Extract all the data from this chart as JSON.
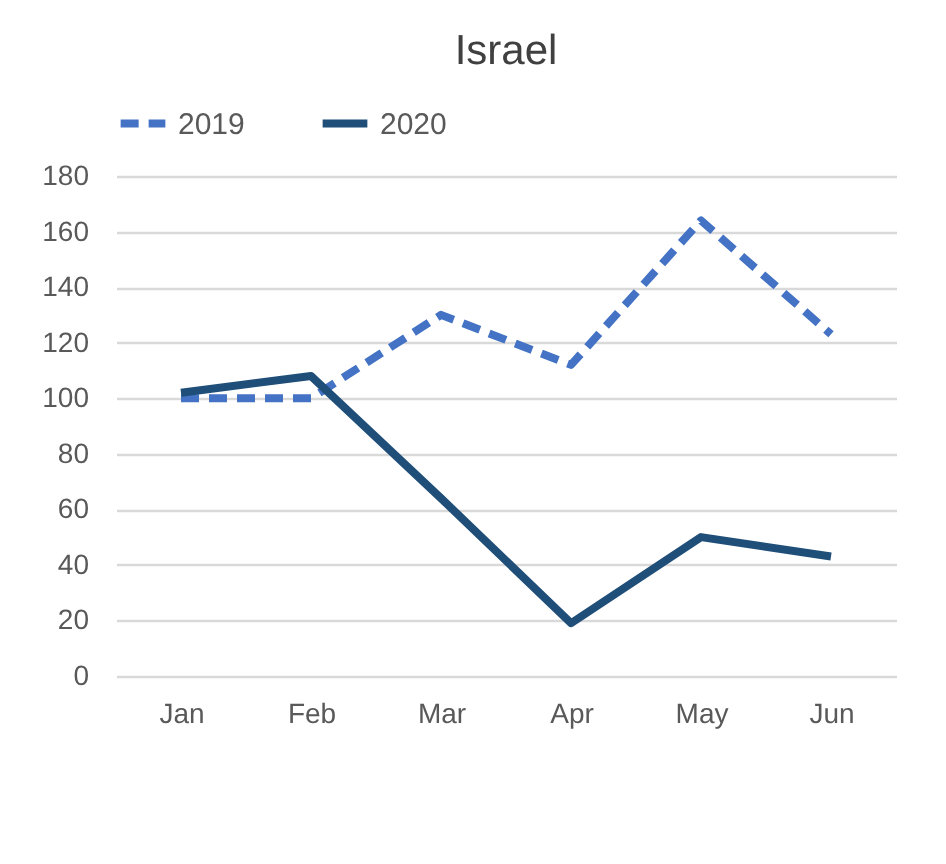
{
  "chart_data": {
    "type": "line",
    "title": "Israel",
    "categories": [
      "Jan",
      "Feb",
      "Mar",
      "Apr",
      "May",
      "Jun"
    ],
    "series": [
      {
        "name": "2019",
        "color": "#4472c4",
        "line_style": "dashed",
        "values": [
          100,
          100,
          130,
          112,
          164,
          123
        ]
      },
      {
        "name": "2020",
        "color": "#1f4e79",
        "line_style": "solid",
        "values": [
          102,
          108,
          64,
          19,
          50,
          43
        ]
      }
    ],
    "ylim": [
      0,
      180
    ],
    "yticks": [
      0,
      20,
      40,
      60,
      80,
      100,
      120,
      140,
      160,
      180
    ],
    "grid": "y",
    "legend": "top",
    "marker": "none"
  }
}
